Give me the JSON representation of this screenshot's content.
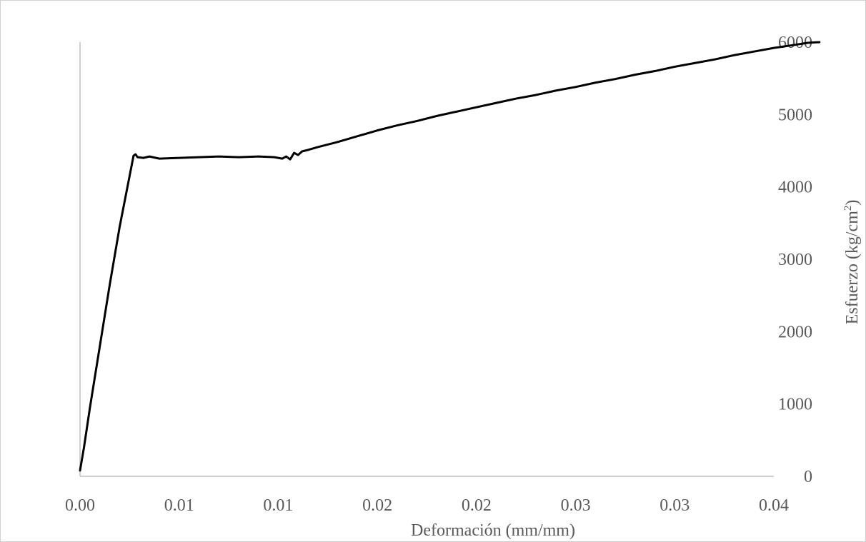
{
  "chart_data": {
    "type": "line",
    "xlabel": "Deformación  (mm/mm)",
    "ylabel": {
      "main": "Esfuerzo  (kg/cm",
      "superscript": "2",
      "close": ")"
    },
    "x_tick_labels": [
      "0.00",
      "0.01",
      "0.01",
      "0.02",
      "0.02",
      "0.03",
      "0.03",
      "0.04"
    ],
    "x_tick_values": [
      0,
      0.005,
      0.01,
      0.015,
      0.02,
      0.025,
      0.03,
      0.035
    ],
    "y_tick_labels": [
      "0",
      "1000",
      "2000",
      "3000",
      "4000",
      "5000",
      "6000"
    ],
    "y_tick_values": [
      0,
      1000,
      2000,
      3000,
      4000,
      5000,
      6000
    ],
    "xlim": [
      0,
      0.035
    ],
    "ylim": [
      0,
      6000
    ],
    "y_axis_position": "right",
    "grid": false,
    "series": [
      {
        "color": "#000000",
        "points": [
          [
            0.0,
            80
          ],
          [
            0.0002,
            400
          ],
          [
            0.0005,
            950
          ],
          [
            0.001,
            1800
          ],
          [
            0.0015,
            2650
          ],
          [
            0.002,
            3450
          ],
          [
            0.0025,
            4150
          ],
          [
            0.0027,
            4430
          ],
          [
            0.0028,
            4450
          ],
          [
            0.0029,
            4410
          ],
          [
            0.0032,
            4400
          ],
          [
            0.0035,
            4420
          ],
          [
            0.004,
            4390
          ],
          [
            0.005,
            4400
          ],
          [
            0.006,
            4410
          ],
          [
            0.007,
            4420
          ],
          [
            0.008,
            4410
          ],
          [
            0.009,
            4420
          ],
          [
            0.0098,
            4410
          ],
          [
            0.0102,
            4390
          ],
          [
            0.0104,
            4420
          ],
          [
            0.0106,
            4380
          ],
          [
            0.0108,
            4470
          ],
          [
            0.011,
            4440
          ],
          [
            0.0112,
            4490
          ],
          [
            0.0115,
            4510
          ],
          [
            0.012,
            4550
          ],
          [
            0.013,
            4620
          ],
          [
            0.014,
            4700
          ],
          [
            0.015,
            4780
          ],
          [
            0.016,
            4850
          ],
          [
            0.017,
            4910
          ],
          [
            0.018,
            4980
          ],
          [
            0.019,
            5040
          ],
          [
            0.02,
            5100
          ],
          [
            0.021,
            5160
          ],
          [
            0.022,
            5220
          ],
          [
            0.023,
            5270
          ],
          [
            0.024,
            5330
          ],
          [
            0.025,
            5380
          ],
          [
            0.026,
            5440
          ],
          [
            0.027,
            5490
          ],
          [
            0.028,
            5550
          ],
          [
            0.029,
            5600
          ],
          [
            0.03,
            5660
          ],
          [
            0.031,
            5710
          ],
          [
            0.032,
            5760
          ],
          [
            0.033,
            5820
          ],
          [
            0.034,
            5870
          ],
          [
            0.035,
            5920
          ],
          [
            0.036,
            5960
          ],
          [
            0.0367,
            5990
          ],
          [
            0.0373,
            6000
          ]
        ]
      }
    ]
  }
}
